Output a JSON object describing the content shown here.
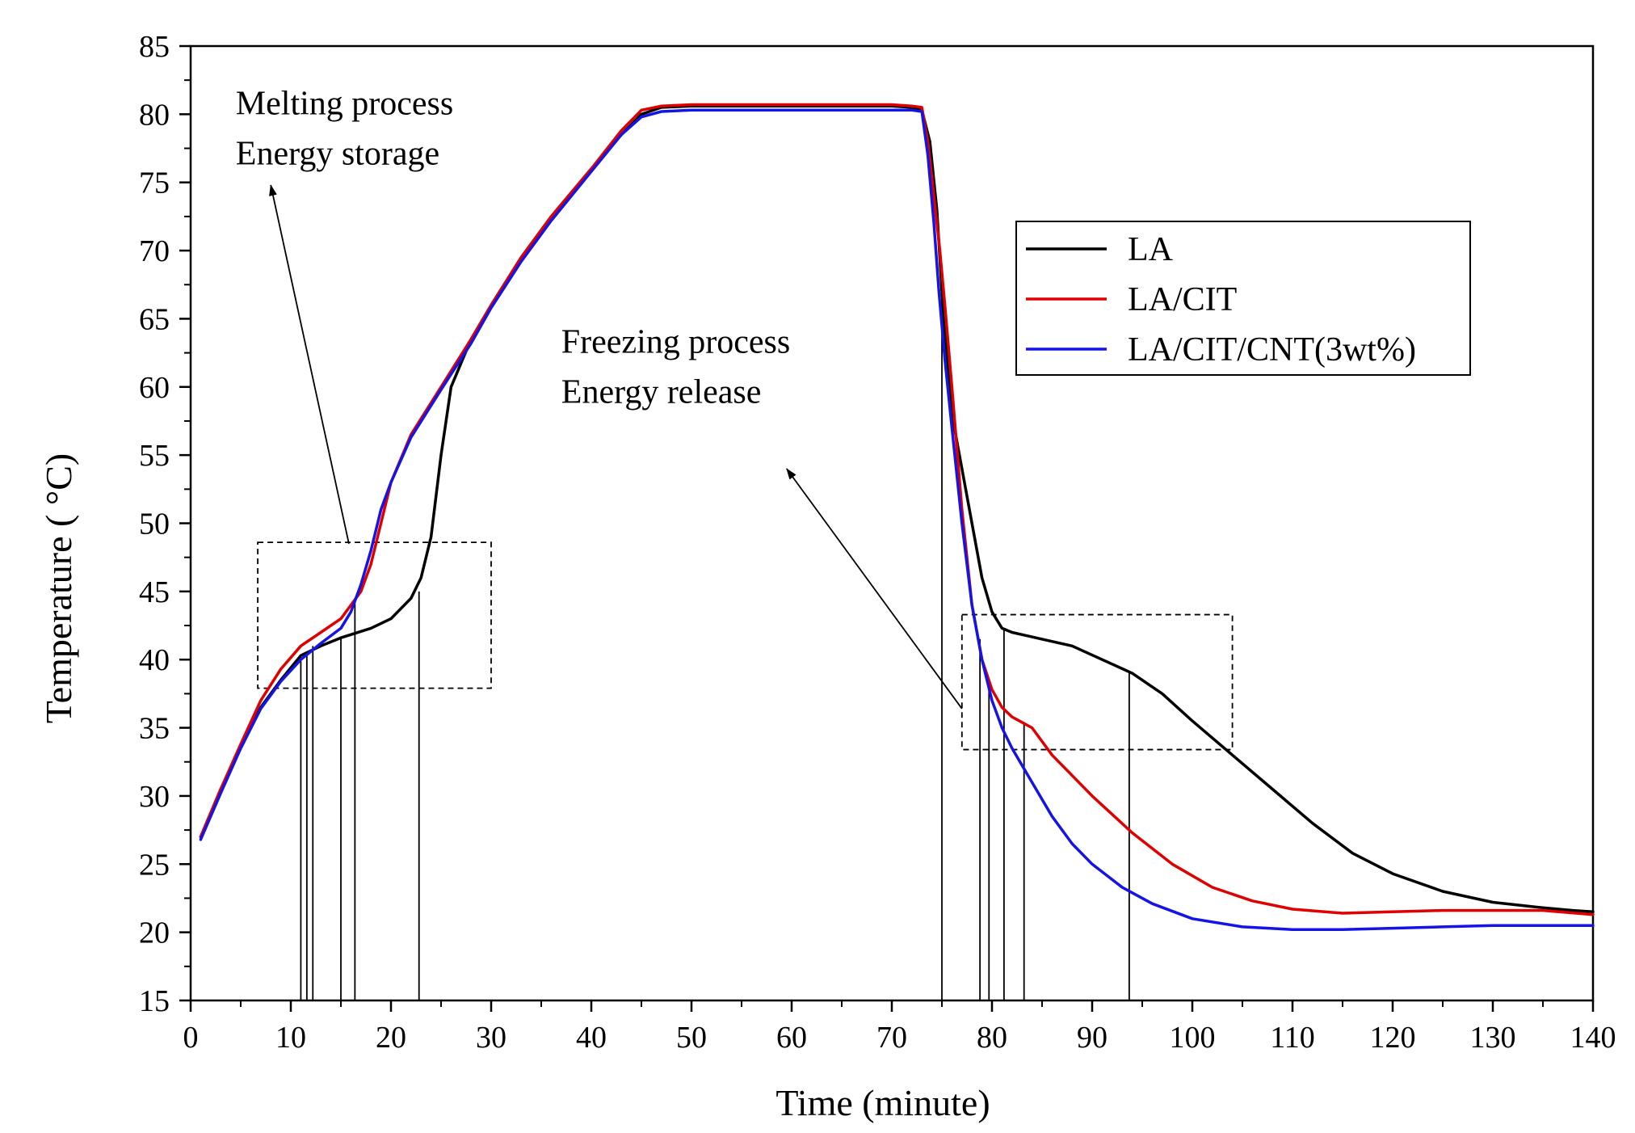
{
  "chart_data": {
    "type": "line",
    "xlabel": "Time (minute)",
    "ylabel": "Temperature ( °C)",
    "xlim": [
      0,
      140
    ],
    "ylim": [
      15,
      85
    ],
    "x_ticks": [
      0,
      10,
      20,
      30,
      40,
      50,
      60,
      70,
      80,
      90,
      100,
      110,
      120,
      130,
      140
    ],
    "y_ticks": [
      15,
      20,
      25,
      30,
      35,
      40,
      45,
      50,
      55,
      60,
      65,
      70,
      75,
      80,
      85
    ],
    "grid": false,
    "legend_position": "top-right",
    "series": [
      {
        "name": "LA",
        "color": "#000000",
        "points": [
          [
            1,
            27
          ],
          [
            3,
            30.5
          ],
          [
            5,
            33.5
          ],
          [
            7,
            36.5
          ],
          [
            9,
            38.5
          ],
          [
            11,
            40.3
          ],
          [
            13,
            41
          ],
          [
            15,
            41.6
          ],
          [
            18,
            42.3
          ],
          [
            20,
            43
          ],
          [
            22,
            44.5
          ],
          [
            23,
            46
          ],
          [
            24,
            49
          ],
          [
            25,
            55
          ],
          [
            26,
            60
          ],
          [
            28,
            63.5
          ],
          [
            30,
            66
          ],
          [
            33,
            69.5
          ],
          [
            36,
            72.5
          ],
          [
            40,
            76
          ],
          [
            43,
            78.5
          ],
          [
            45,
            80
          ],
          [
            47,
            80.5
          ],
          [
            50,
            80.6
          ],
          [
            60,
            80.6
          ],
          [
            70,
            80.6
          ],
          [
            72,
            80.5
          ],
          [
            73,
            80.3
          ],
          [
            73.8,
            78
          ],
          [
            74.5,
            73
          ],
          [
            75,
            67
          ],
          [
            75.5,
            62
          ],
          [
            76,
            58
          ],
          [
            77,
            54
          ],
          [
            78,
            50
          ],
          [
            79,
            46
          ],
          [
            80,
            43.5
          ],
          [
            81,
            42.3
          ],
          [
            82,
            42
          ],
          [
            85,
            41.5
          ],
          [
            88,
            41
          ],
          [
            91,
            40
          ],
          [
            94,
            39
          ],
          [
            97,
            37.5
          ],
          [
            100,
            35.5
          ],
          [
            104,
            33
          ],
          [
            108,
            30.5
          ],
          [
            112,
            28
          ],
          [
            116,
            25.8
          ],
          [
            120,
            24.3
          ],
          [
            125,
            23
          ],
          [
            130,
            22.2
          ],
          [
            135,
            21.8
          ],
          [
            138,
            21.6
          ],
          [
            140,
            21.5
          ]
        ]
      },
      {
        "name": "LA/CIT",
        "color": "#e00000",
        "points": [
          [
            1,
            27
          ],
          [
            3,
            30.5
          ],
          [
            5,
            33.8
          ],
          [
            7,
            37
          ],
          [
            9,
            39.3
          ],
          [
            11,
            41
          ],
          [
            13,
            42
          ],
          [
            15,
            43
          ],
          [
            17,
            45
          ],
          [
            18,
            47
          ],
          [
            19,
            50
          ],
          [
            20,
            53
          ],
          [
            22,
            56.5
          ],
          [
            25,
            60
          ],
          [
            28,
            63.5
          ],
          [
            30,
            66
          ],
          [
            33,
            69.5
          ],
          [
            36,
            72.5
          ],
          [
            40,
            76
          ],
          [
            43,
            78.8
          ],
          [
            45,
            80.3
          ],
          [
            47,
            80.6
          ],
          [
            50,
            80.7
          ],
          [
            60,
            80.7
          ],
          [
            70,
            80.7
          ],
          [
            72,
            80.6
          ],
          [
            73,
            80.5
          ],
          [
            73.6,
            78
          ],
          [
            74.2,
            74
          ],
          [
            74.8,
            70
          ],
          [
            75.3,
            66
          ],
          [
            76,
            60
          ],
          [
            77,
            51
          ],
          [
            78,
            44
          ],
          [
            79,
            40
          ],
          [
            80,
            37.8
          ],
          [
            81,
            36.5
          ],
          [
            82,
            35.8
          ],
          [
            84,
            35
          ],
          [
            86,
            33
          ],
          [
            90,
            30
          ],
          [
            94,
            27.3
          ],
          [
            98,
            25
          ],
          [
            102,
            23.3
          ],
          [
            106,
            22.3
          ],
          [
            110,
            21.7
          ],
          [
            115,
            21.4
          ],
          [
            120,
            21.5
          ],
          [
            125,
            21.6
          ],
          [
            130,
            21.6
          ],
          [
            135,
            21.6
          ],
          [
            140,
            21.3
          ]
        ]
      },
      {
        "name": "LA/CIT/CNT(3wt%)",
        "color": "#1414e6",
        "points": [
          [
            1,
            26.8
          ],
          [
            3,
            30.2
          ],
          [
            5,
            33.5
          ],
          [
            7,
            36.4
          ],
          [
            9,
            38.4
          ],
          [
            11,
            40
          ],
          [
            13,
            41.2
          ],
          [
            15,
            42.3
          ],
          [
            16,
            43.5
          ],
          [
            17,
            45.5
          ],
          [
            18,
            48
          ],
          [
            19,
            51
          ],
          [
            20,
            53
          ],
          [
            22,
            56.3
          ],
          [
            25,
            59.8
          ],
          [
            28,
            63.2
          ],
          [
            30,
            65.8
          ],
          [
            33,
            69.2
          ],
          [
            36,
            72.2
          ],
          [
            40,
            75.8
          ],
          [
            43,
            78.5
          ],
          [
            45,
            79.8
          ],
          [
            47,
            80.2
          ],
          [
            50,
            80.3
          ],
          [
            60,
            80.3
          ],
          [
            70,
            80.3
          ],
          [
            72,
            80.3
          ],
          [
            73,
            80.2
          ],
          [
            73.6,
            77
          ],
          [
            74.2,
            72
          ],
          [
            74.7,
            67
          ],
          [
            75.3,
            62
          ],
          [
            76,
            57
          ],
          [
            77,
            50
          ],
          [
            78,
            44
          ],
          [
            79,
            40
          ],
          [
            80,
            37
          ],
          [
            81,
            35
          ],
          [
            82,
            33.5
          ],
          [
            84,
            31
          ],
          [
            86,
            28.5
          ],
          [
            88,
            26.5
          ],
          [
            90,
            25
          ],
          [
            93,
            23.3
          ],
          [
            96,
            22.1
          ],
          [
            100,
            21
          ],
          [
            105,
            20.4
          ],
          [
            110,
            20.2
          ],
          [
            115,
            20.2
          ],
          [
            120,
            20.3
          ],
          [
            125,
            20.4
          ],
          [
            130,
            20.5
          ],
          [
            135,
            20.5
          ],
          [
            140,
            20.5
          ]
        ]
      }
    ],
    "annotations": [
      {
        "lines": [
          "Melting process",
          "Energy storage"
        ],
        "at": [
          4.5,
          80
        ]
      },
      {
        "lines": [
          "Freezing process",
          "Energy release"
        ],
        "at": [
          37,
          62.5
        ]
      }
    ],
    "annotation_arrows": [
      {
        "from": [
          15.8,
          48.5
        ],
        "to": [
          8,
          74.8
        ]
      },
      {
        "from": [
          77,
          36.4
        ],
        "to": [
          59.5,
          54
        ]
      }
    ],
    "dashed_boxes": [
      {
        "x": [
          6.7,
          30
        ],
        "y": [
          37.9,
          48.6
        ]
      },
      {
        "x": [
          77,
          104
        ],
        "y": [
          33.4,
          43.3
        ]
      }
    ],
    "marker_lines": [
      {
        "x": 11.0,
        "y": 40.3
      },
      {
        "x": 11.6,
        "y": 40.6
      },
      {
        "x": 12.2,
        "y": 41.0
      },
      {
        "x": 15.0,
        "y": 41.6
      },
      {
        "x": 16.4,
        "y": 44.5
      },
      {
        "x": 22.8,
        "y": 45.0
      },
      {
        "x": 75.0,
        "y": 67.0
      },
      {
        "x": 78.8,
        "y": 41.5
      },
      {
        "x": 79.7,
        "y": 38.5
      },
      {
        "x": 81.2,
        "y": 42.3
      },
      {
        "x": 83.2,
        "y": 35.3
      },
      {
        "x": 93.7,
        "y": 39.0
      }
    ]
  }
}
